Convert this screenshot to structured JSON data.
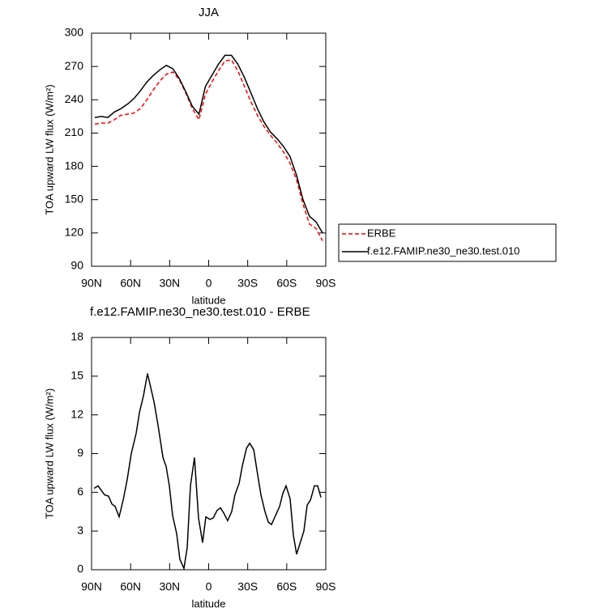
{
  "chart_data": [
    {
      "type": "line",
      "title": "JJA",
      "xlabel": "latitude",
      "ylabel": "TOA upward LW flux (W/m²)",
      "xlim": [
        90,
        -90
      ],
      "xticks": [
        {
          "value": 90,
          "label": "90N"
        },
        {
          "value": 60,
          "label": "60N"
        },
        {
          "value": 30,
          "label": "30N"
        },
        0,
        {
          "value": -30,
          "label": "30S"
        },
        {
          "value": -60,
          "label": "60S"
        },
        {
          "value": -90,
          "label": "90S"
        }
      ],
      "ylim": [
        90,
        300
      ],
      "yticks": [
        90,
        120,
        150,
        180,
        210,
        240,
        270,
        300
      ],
      "legend": "outside-right",
      "x": [
        87.5,
        82.5,
        77.5,
        72.5,
        67.5,
        62.5,
        57.5,
        52.5,
        47.5,
        42.5,
        37.5,
        32.5,
        27.5,
        22.5,
        17.5,
        12.5,
        7.5,
        2.5,
        -2.5,
        -7.5,
        -12.5,
        -17.5,
        -22.5,
        -27.5,
        -32.5,
        -37.5,
        -42.5,
        -47.5,
        -52.5,
        -57.5,
        -62.5,
        -67.5,
        -72.5,
        -77.5,
        -82.5,
        -87.5
      ],
      "series": [
        {
          "name": "ERBE",
          "color": "#ff0000",
          "linestyle": "dashed",
          "values": [
            218,
            219,
            219,
            222,
            226,
            227,
            228,
            232,
            240,
            249,
            257,
            263,
            265,
            258,
            246,
            232,
            222,
            245,
            256,
            266,
            275,
            276,
            266,
            252,
            238,
            226,
            216,
            208,
            201,
            193,
            183,
            168,
            146,
            128,
            124,
            113
          ]
        },
        {
          "name": "f.e12.FAMIP.ne30_ne30.test.010",
          "color": "#000000",
          "linestyle": "solid",
          "values": [
            224,
            225,
            224,
            229,
            232,
            236,
            241,
            248,
            256,
            262,
            267,
            271,
            268,
            259,
            247,
            234,
            227,
            252,
            262,
            272,
            280,
            280,
            272,
            260,
            246,
            232,
            220,
            211,
            205,
            198,
            189,
            172,
            150,
            135,
            130,
            120
          ]
        }
      ]
    },
    {
      "type": "line",
      "title": "f.e12.FAMIP.ne30_ne30.test.010 - ERBE",
      "xlabel": "latitude",
      "ylabel": "TOA upward LW flux (W/m²)",
      "xlim": [
        90,
        -90
      ],
      "xticks": [
        {
          "value": 90,
          "label": "90N"
        },
        {
          "value": 60,
          "label": "60N"
        },
        {
          "value": 30,
          "label": "30N"
        },
        0,
        {
          "value": -30,
          "label": "30S"
        },
        {
          "value": -60,
          "label": "60S"
        },
        {
          "value": -90,
          "label": "90S"
        }
      ],
      "ylim": [
        0,
        18
      ],
      "yticks": [
        0,
        3,
        6,
        9,
        12,
        15,
        18
      ],
      "color": "#000000",
      "x": [
        88.1,
        85.0,
        80.0,
        76.9,
        74.4,
        71.9,
        68.8,
        65.7,
        62.6,
        59.5,
        55.7,
        53.2,
        50.1,
        47.0,
        42.0,
        38.9,
        35.1,
        32.7,
        30.2,
        27.7,
        24.6,
        22.1,
        19.0,
        16.5,
        14.0,
        10.9,
        7.8,
        4.7,
        2.2,
        -0.9,
        -3.4,
        -6.5,
        -9.0,
        -12.1,
        -14.6,
        -17.7,
        -20.2,
        -23.4,
        -25.8,
        -29.0,
        -31.5,
        -34.6,
        -37.1,
        -40.2,
        -43.3,
        -45.8,
        -48.3,
        -51.4,
        -54.5,
        -57.0,
        -59.5,
        -62.6,
        -65.1,
        -67.6,
        -70.1,
        -73.2,
        -75.7,
        -78.2,
        -81.3,
        -83.8,
        -86.3
      ],
      "values": [
        6.3,
        6.5,
        5.8,
        5.7,
        5.1,
        4.9,
        4.1,
        5.4,
        7.0,
        9.0,
        10.6,
        12.2,
        13.5,
        15.2,
        13.0,
        11.2,
        8.7,
        8.0,
        6.5,
        4.2,
        2.8,
        0.8,
        0.1,
        1.7,
        6.5,
        8.7,
        4.0,
        2.1,
        4.1,
        3.9,
        4.0,
        4.6,
        4.8,
        4.3,
        3.8,
        4.5,
        5.8,
        6.7,
        8.0,
        9.4,
        9.8,
        9.3,
        7.7,
        5.8,
        4.5,
        3.7,
        3.5,
        4.2,
        4.9,
        5.9,
        6.5,
        5.5,
        2.7,
        1.2,
        2.0,
        3.0,
        5.0,
        5.4,
        6.5,
        6.5,
        5.6
      ]
    }
  ]
}
